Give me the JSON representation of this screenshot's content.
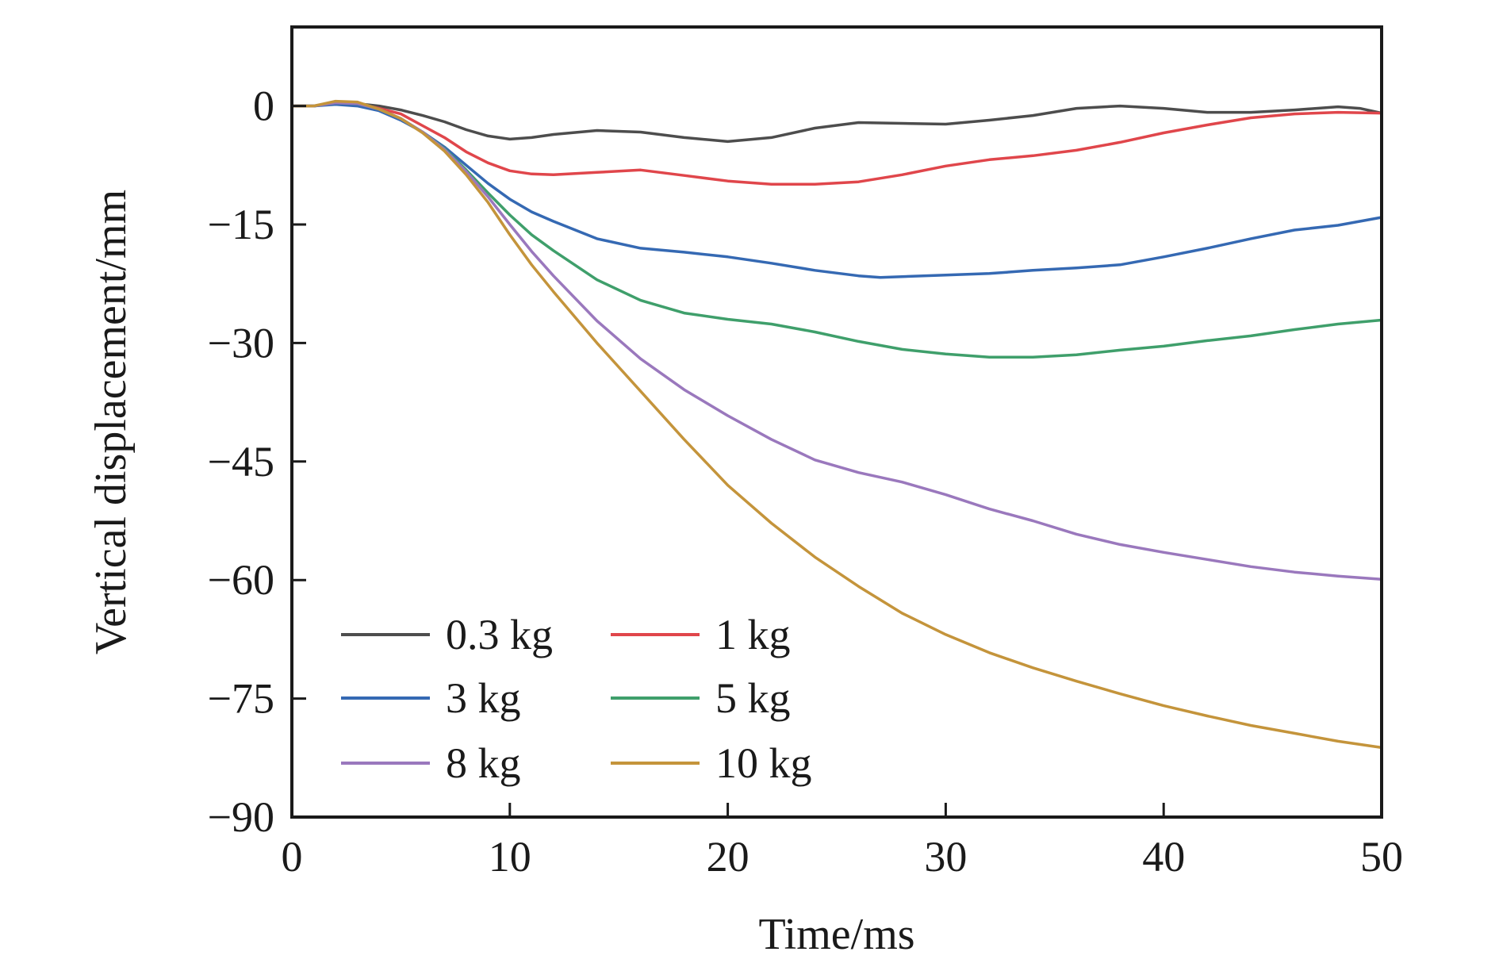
{
  "chart_data": {
    "type": "line",
    "title": "",
    "xlabel": "Time/ms",
    "ylabel": "Vertical displacement/mm",
    "xlim": [
      0,
      50
    ],
    "ylim": [
      -90,
      10
    ],
    "xticks": [
      0,
      10,
      20,
      30,
      40,
      50
    ],
    "xtick_labels": [
      "0",
      "10",
      "20",
      "30",
      "40",
      "50"
    ],
    "yticks": [
      0,
      -15,
      -30,
      -45,
      -60,
      -75,
      -90
    ],
    "ytick_labels": [
      "0",
      "−15",
      "−30",
      "−45",
      "−60",
      "−75",
      "−90"
    ],
    "grid": false,
    "legend_position": "bottom-left",
    "legend_columns": 2,
    "series": [
      {
        "name": "0.3 kg",
        "color": "#4d4d4d",
        "x": [
          0,
          1,
          2,
          3,
          4,
          5,
          6,
          7,
          8,
          9,
          10,
          11,
          12,
          14,
          16,
          18,
          20,
          22,
          24,
          26,
          28,
          30,
          32,
          34,
          36,
          38,
          40,
          42,
          44,
          46,
          48,
          49,
          50
        ],
        "y": [
          0,
          0,
          0.3,
          0.3,
          0,
          -0.5,
          -1.2,
          -2,
          -3,
          -3.8,
          -4.2,
          -4,
          -3.6,
          -3.1,
          -3.3,
          -4,
          -4.5,
          -4,
          -2.8,
          -2.1,
          -2.2,
          -2.3,
          -1.8,
          -1.2,
          -0.3,
          0,
          -0.3,
          -0.8,
          -0.8,
          -0.5,
          -0.1,
          -0.3,
          -0.9
        ]
      },
      {
        "name": "1 kg",
        "color": "#e0464b",
        "x": [
          0,
          1,
          2,
          3,
          4,
          5,
          6,
          7,
          8,
          9,
          10,
          11,
          12,
          14,
          16,
          18,
          20,
          22,
          24,
          26,
          28,
          30,
          32,
          34,
          36,
          38,
          40,
          42,
          44,
          46,
          48,
          50
        ],
        "y": [
          0,
          0,
          0.5,
          0.3,
          -0.3,
          -1,
          -2.5,
          -4,
          -5.8,
          -7.2,
          -8.2,
          -8.6,
          -8.7,
          -8.4,
          -8.1,
          -8.8,
          -9.5,
          -9.9,
          -9.9,
          -9.6,
          -8.7,
          -7.6,
          -6.8,
          -6.3,
          -5.6,
          -4.6,
          -3.4,
          -2.4,
          -1.5,
          -1,
          -0.8,
          -0.9
        ]
      },
      {
        "name": "3 kg",
        "color": "#3569b3",
        "x": [
          0,
          1,
          2,
          3,
          4,
          5,
          6,
          7,
          8,
          9,
          10,
          11,
          12,
          14,
          16,
          18,
          20,
          22,
          24,
          26,
          27,
          28,
          30,
          32,
          34,
          36,
          38,
          40,
          42,
          44,
          46,
          48,
          50
        ],
        "y": [
          0,
          0,
          0.2,
          0,
          -0.6,
          -1.8,
          -3.3,
          -5.2,
          -7.5,
          -9.8,
          -11.8,
          -13.4,
          -14.6,
          -16.8,
          -18,
          -18.5,
          -19.1,
          -19.9,
          -20.8,
          -21.5,
          -21.7,
          -21.6,
          -21.4,
          -21.2,
          -20.8,
          -20.5,
          -20.1,
          -19.1,
          -18,
          -16.8,
          -15.7,
          -15.1,
          -14.1
        ]
      },
      {
        "name": "5 kg",
        "color": "#3f9f6b",
        "x": [
          0,
          1,
          2,
          3,
          4,
          5,
          6,
          7,
          8,
          9,
          10,
          11,
          12,
          14,
          16,
          18,
          20,
          22,
          24,
          26,
          28,
          30,
          32,
          34,
          36,
          38,
          40,
          42,
          44,
          46,
          48,
          50
        ],
        "y": [
          0,
          0,
          0.4,
          0.3,
          -0.4,
          -1.6,
          -3.3,
          -5.4,
          -8.1,
          -11,
          -13.8,
          -16.3,
          -18.3,
          -22,
          -24.6,
          -26.2,
          -27,
          -27.6,
          -28.6,
          -29.8,
          -30.8,
          -31.4,
          -31.8,
          -31.8,
          -31.5,
          -30.9,
          -30.4,
          -29.7,
          -29.1,
          -28.3,
          -27.6,
          -27.1
        ]
      },
      {
        "name": "8 kg",
        "color": "#9a78bd",
        "x": [
          0,
          1,
          2,
          3,
          4,
          5,
          6,
          7,
          8,
          9,
          10,
          11,
          12,
          14,
          16,
          18,
          20,
          22,
          24,
          26,
          28,
          30,
          32,
          34,
          36,
          38,
          40,
          42,
          44,
          46,
          48,
          50
        ],
        "y": [
          0,
          0,
          0.4,
          0.3,
          -0.4,
          -1.6,
          -3.3,
          -5.5,
          -8.3,
          -11.5,
          -15,
          -18.4,
          -21.5,
          -27.2,
          -32,
          -35.9,
          -39.2,
          -42.2,
          -44.8,
          -46.4,
          -47.6,
          -49.2,
          -51,
          -52.5,
          -54.2,
          -55.5,
          -56.5,
          -57.4,
          -58.3,
          -59,
          -59.5,
          -59.9
        ]
      },
      {
        "name": "10 kg",
        "color": "#c4943b",
        "x": [
          0,
          1,
          2,
          3,
          4,
          5,
          6,
          7,
          8,
          9,
          10,
          11,
          12,
          14,
          16,
          18,
          20,
          22,
          24,
          26,
          28,
          30,
          32,
          34,
          36,
          38,
          40,
          42,
          44,
          46,
          48,
          50
        ],
        "y": [
          0,
          0,
          0.6,
          0.5,
          -0.4,
          -1.6,
          -3.4,
          -5.7,
          -8.7,
          -12.2,
          -16.3,
          -20.1,
          -23.5,
          -30,
          -36.1,
          -42.2,
          -48,
          -52.8,
          -57.1,
          -60.8,
          -64.2,
          -66.9,
          -69.2,
          -71.1,
          -72.8,
          -74.4,
          -75.9,
          -77.2,
          -78.4,
          -79.4,
          -80.4,
          -81.2
        ]
      }
    ]
  }
}
